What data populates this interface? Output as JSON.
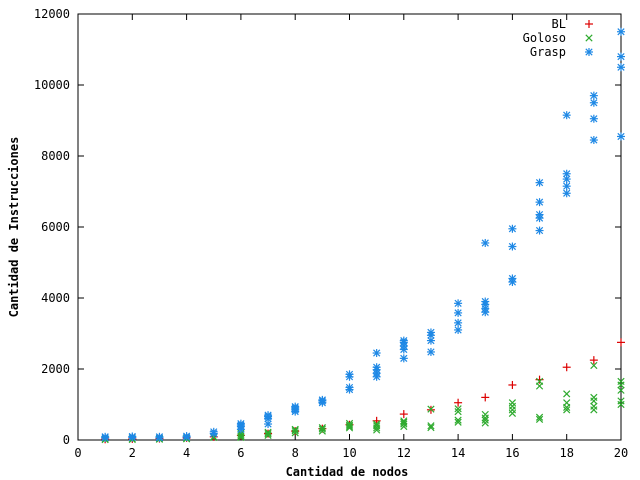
{
  "chart_data": {
    "type": "scatter",
    "xlabel": "Cantidad de nodos",
    "ylabel": "Cantidad de Instrucciones",
    "xlim": [
      0,
      20
    ],
    "ylim": [
      0,
      12000
    ],
    "xticks": [
      0,
      2,
      4,
      6,
      8,
      10,
      12,
      14,
      16,
      18,
      20
    ],
    "yticks": [
      0,
      2000,
      4000,
      6000,
      8000,
      10000,
      12000
    ],
    "legend_position": "top-right",
    "grid": false,
    "series": [
      {
        "name": "BL",
        "color": "#dd0000",
        "marker": "plus",
        "points": [
          [
            1,
            20
          ],
          [
            2,
            30
          ],
          [
            3,
            40
          ],
          [
            4,
            60
          ],
          [
            5,
            90
          ],
          [
            6,
            130
          ],
          [
            7,
            180
          ],
          [
            8,
            250
          ],
          [
            9,
            320
          ],
          [
            10,
            430
          ],
          [
            11,
            540
          ],
          [
            12,
            730
          ],
          [
            13,
            850
          ],
          [
            14,
            1050
          ],
          [
            15,
            1200
          ],
          [
            16,
            1550
          ],
          [
            17,
            1700
          ],
          [
            18,
            2050
          ],
          [
            19,
            2250
          ],
          [
            20,
            2750
          ]
        ]
      },
      {
        "name": "Goloso",
        "color": "#2eaa2e",
        "marker": "x",
        "points": [
          [
            1,
            10
          ],
          [
            1,
            25
          ],
          [
            2,
            15
          ],
          [
            2,
            30
          ],
          [
            3,
            20
          ],
          [
            3,
            40
          ],
          [
            4,
            30
          ],
          [
            4,
            50
          ],
          [
            5,
            70
          ],
          [
            5,
            90
          ],
          [
            6,
            70
          ],
          [
            6,
            110
          ],
          [
            6,
            160
          ],
          [
            6,
            200
          ],
          [
            7,
            130
          ],
          [
            7,
            180
          ],
          [
            7,
            220
          ],
          [
            8,
            200
          ],
          [
            8,
            260
          ],
          [
            8,
            300
          ],
          [
            9,
            250
          ],
          [
            9,
            310
          ],
          [
            9,
            350
          ],
          [
            10,
            340
          ],
          [
            10,
            380
          ],
          [
            10,
            420
          ],
          [
            10,
            470
          ],
          [
            11,
            280
          ],
          [
            11,
            340
          ],
          [
            11,
            400
          ],
          [
            11,
            450
          ],
          [
            12,
            380
          ],
          [
            12,
            450
          ],
          [
            12,
            500
          ],
          [
            12,
            540
          ],
          [
            13,
            350
          ],
          [
            13,
            400
          ],
          [
            13,
            870
          ],
          [
            14,
            500
          ],
          [
            14,
            560
          ],
          [
            14,
            800
          ],
          [
            14,
            880
          ],
          [
            15,
            480
          ],
          [
            15,
            560
          ],
          [
            15,
            620
          ],
          [
            15,
            720
          ],
          [
            16,
            750
          ],
          [
            16,
            850
          ],
          [
            16,
            950
          ],
          [
            16,
            1050
          ],
          [
            17,
            580
          ],
          [
            17,
            640
          ],
          [
            17,
            1520
          ],
          [
            17,
            1650
          ],
          [
            18,
            850
          ],
          [
            18,
            920
          ],
          [
            18,
            1050
          ],
          [
            18,
            1300
          ],
          [
            19,
            850
          ],
          [
            19,
            950
          ],
          [
            19,
            1100
          ],
          [
            19,
            1200
          ],
          [
            19,
            2100
          ],
          [
            20,
            1000
          ],
          [
            20,
            1100
          ],
          [
            20,
            1400
          ],
          [
            20,
            1550
          ],
          [
            20,
            1650
          ]
        ]
      },
      {
        "name": "Grasp",
        "color": "#1e88e5",
        "marker": "star",
        "points": [
          [
            1,
            60
          ],
          [
            1,
            90
          ],
          [
            2,
            70
          ],
          [
            2,
            100
          ],
          [
            3,
            60
          ],
          [
            3,
            90
          ],
          [
            4,
            80
          ],
          [
            4,
            110
          ],
          [
            5,
            180
          ],
          [
            5,
            230
          ],
          [
            6,
            300
          ],
          [
            6,
            380
          ],
          [
            6,
            420
          ],
          [
            6,
            460
          ],
          [
            7,
            450
          ],
          [
            7,
            600
          ],
          [
            7,
            660
          ],
          [
            7,
            700
          ],
          [
            8,
            800
          ],
          [
            8,
            850
          ],
          [
            8,
            900
          ],
          [
            8,
            940
          ],
          [
            9,
            1050
          ],
          [
            9,
            1100
          ],
          [
            9,
            1130
          ],
          [
            10,
            1420
          ],
          [
            10,
            1480
          ],
          [
            10,
            1780
          ],
          [
            10,
            1850
          ],
          [
            11,
            1780
          ],
          [
            11,
            1880
          ],
          [
            11,
            1980
          ],
          [
            11,
            2050
          ],
          [
            11,
            2450
          ],
          [
            12,
            2300
          ],
          [
            12,
            2550
          ],
          [
            12,
            2650
          ],
          [
            12,
            2750
          ],
          [
            12,
            2800
          ],
          [
            13,
            2480
          ],
          [
            13,
            2800
          ],
          [
            13,
            2950
          ],
          [
            13,
            3030
          ],
          [
            14,
            3100
          ],
          [
            14,
            3300
          ],
          [
            14,
            3580
          ],
          [
            14,
            3850
          ],
          [
            15,
            3600
          ],
          [
            15,
            3700
          ],
          [
            15,
            3820
          ],
          [
            15,
            3900
          ],
          [
            15,
            5550
          ],
          [
            16,
            4450
          ],
          [
            16,
            4550
          ],
          [
            16,
            5450
          ],
          [
            16,
            5950
          ],
          [
            17,
            5900
          ],
          [
            17,
            6250
          ],
          [
            17,
            6350
          ],
          [
            17,
            6700
          ],
          [
            17,
            7250
          ],
          [
            18,
            6950
          ],
          [
            18,
            7150
          ],
          [
            18,
            7350
          ],
          [
            18,
            7500
          ],
          [
            18,
            9150
          ],
          [
            19,
            8450
          ],
          [
            19,
            9050
          ],
          [
            19,
            9500
          ],
          [
            19,
            9700
          ],
          [
            20,
            8550
          ],
          [
            20,
            10500
          ],
          [
            20,
            10800
          ],
          [
            20,
            11500
          ]
        ]
      }
    ]
  }
}
